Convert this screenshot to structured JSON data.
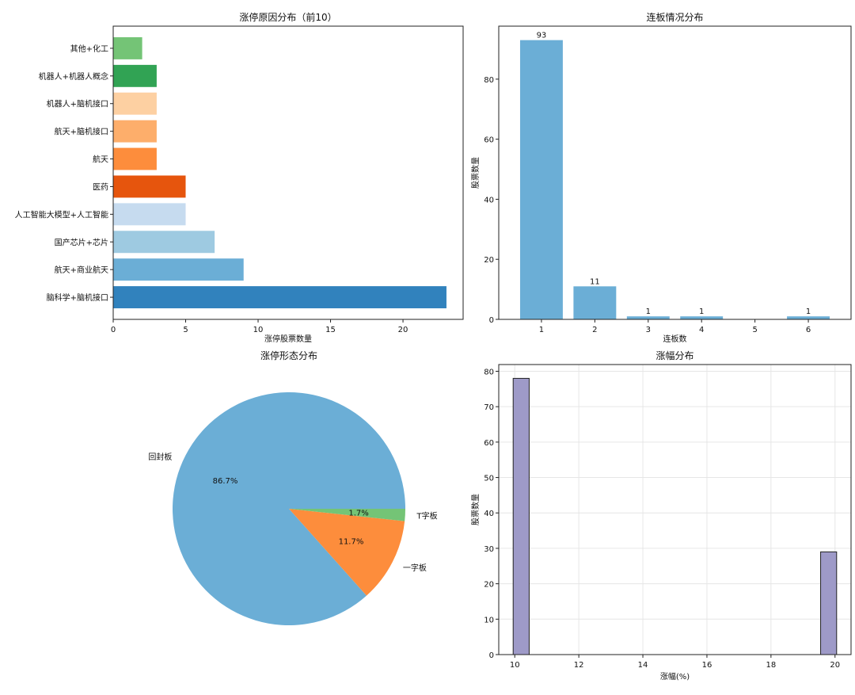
{
  "chart_data": [
    {
      "type": "bar",
      "orientation": "horizontal",
      "title": "涨停原因分布（前10）",
      "xlabel": "涨停股票数量",
      "ylabel": "",
      "categories": [
        "脑科学+脑机接口",
        "航天+商业航天",
        "国产芯片+芯片",
        "人工智能大模型+人工智能",
        "医药",
        "航天",
        "航天+脑机接口",
        "机器人+脑机接口",
        "机器人+机器人概念",
        "其他+化工"
      ],
      "values": [
        23,
        9,
        7,
        5,
        5,
        3,
        3,
        3,
        3,
        2
      ],
      "colors": [
        "#3182bd",
        "#6baed6",
        "#9ecae1",
        "#c6dbef",
        "#e6550d",
        "#fd8d3c",
        "#fdae6b",
        "#fdd0a2",
        "#31a354",
        "#74c476"
      ],
      "xlim": [
        0,
        24.15
      ],
      "xticks": [
        0,
        5,
        10,
        15,
        20
      ]
    },
    {
      "type": "bar",
      "title": "连板情况分布",
      "xlabel": "连板数",
      "ylabel": "股票数量",
      "categories": [
        "1",
        "2",
        "3",
        "4",
        "5",
        "6"
      ],
      "values": [
        93,
        11,
        1,
        1,
        0,
        1
      ],
      "data_labels": [
        "93",
        "11",
        "1",
        "1",
        "",
        "1"
      ],
      "color": "#6baed6",
      "ylim": [
        0,
        97.65
      ],
      "yticks": [
        0,
        20,
        40,
        60,
        80
      ]
    },
    {
      "type": "pie",
      "title": "涨停形态分布",
      "labels": [
        "回封板",
        "一字板",
        "T字板"
      ],
      "values": [
        86.7,
        11.7,
        1.7
      ],
      "pct_labels": [
        "86.7%",
        "11.7%",
        "1.7%"
      ],
      "colors": [
        "#6baed6",
        "#fd8d3c",
        "#74c476"
      ],
      "start_angle": 0,
      "direction": "counterclockwise"
    },
    {
      "type": "histogram",
      "title": "涨幅分布",
      "xlabel": "涨幅(%)",
      "ylabel": "股票数量",
      "bins": [
        {
          "x0": 9.95,
          "x1": 10.45,
          "count": 78
        },
        {
          "x0": 19.55,
          "x1": 20.05,
          "count": 29
        }
      ],
      "color": "#9e9ac8",
      "edgecolor": "#222222",
      "xlim": [
        9.5,
        20.5
      ],
      "ylim": [
        0,
        81.9
      ],
      "xticks": [
        10,
        12,
        14,
        16,
        18,
        20
      ],
      "yticks": [
        0,
        10,
        20,
        30,
        40,
        50,
        60,
        70,
        80
      ],
      "grid": true
    }
  ]
}
